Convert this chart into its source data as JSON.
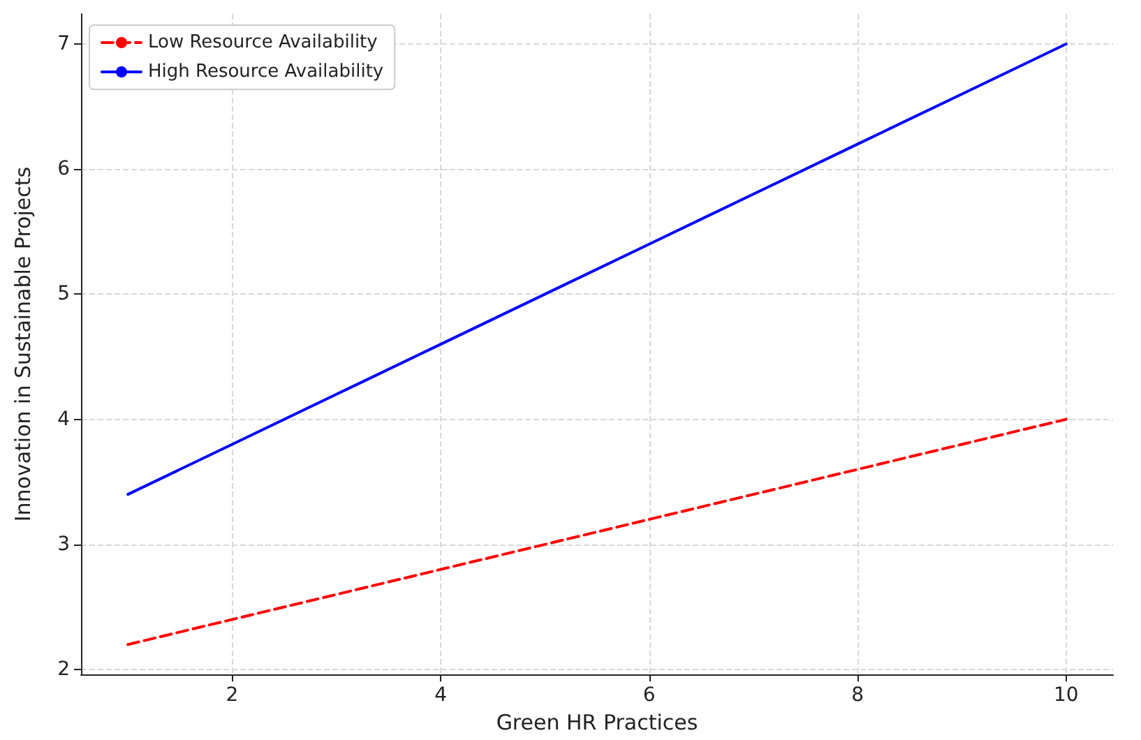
{
  "chart_data": {
    "type": "line",
    "xlabel": "Green HR Practices",
    "ylabel": "Innovation in Sustainable Projects",
    "x": [
      1,
      2,
      3,
      4,
      5,
      6,
      7,
      8,
      9,
      10
    ],
    "series": [
      {
        "name": "Low Resource Availability",
        "color": "#ff0000",
        "line_style": "dashed",
        "values": [
          2.2,
          2.4,
          2.6,
          2.8,
          3.0,
          3.2,
          3.4,
          3.6,
          3.8,
          4.0
        ]
      },
      {
        "name": "High Resource Availability",
        "color": "#0000ff",
        "line_style": "solid",
        "values": [
          3.4,
          3.8,
          4.2,
          4.6,
          5.0,
          5.4,
          5.8,
          6.2,
          6.6,
          7.0
        ]
      }
    ],
    "xlim": [
      0.55,
      10.45
    ],
    "xticks": [
      2,
      4,
      6,
      8,
      10
    ],
    "ylim": [
      1.96,
      7.24
    ],
    "yticks": [
      2,
      3,
      4,
      5,
      6,
      7
    ],
    "grid": true,
    "legend": "top left",
    "marker": "none"
  }
}
